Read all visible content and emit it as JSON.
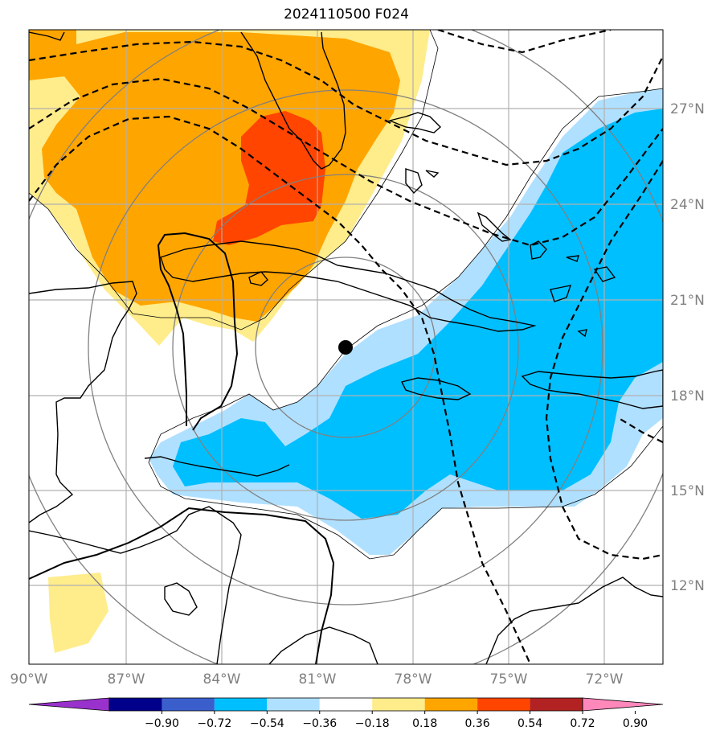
{
  "title": "2024110500 F024",
  "lon_ticks": [
    "90°W",
    "87°W",
    "84°W",
    "81°W",
    "78°W",
    "75°W",
    "72°W"
  ],
  "lat_ticks": [
    "27°N",
    "24°N",
    "21°N",
    "18°N",
    "15°N",
    "12°N"
  ],
  "colorbar": {
    "tick_labels": [
      "−0.90",
      "−0.72",
      "−0.54",
      "−0.36",
      "−0.18",
      "0.18",
      "0.36",
      "0.54",
      "0.72",
      "0.90"
    ],
    "colors": [
      "#9932cc",
      "#00008b",
      "#3a5fcd",
      "#00bfff",
      "#b0e0ff",
      "#ffffff",
      "#ffec8b",
      "#ffa500",
      "#ff4500",
      "#b22222",
      "#ff88bb"
    ]
  },
  "map": {
    "extent": {
      "lon": [
        -90,
        -70
      ],
      "lat": [
        10,
        30
      ]
    },
    "storm_center": {
      "lon": -80.1,
      "lat": 19.5
    },
    "fill_colors": {
      "light_yellow": "#ffec8b",
      "orange": "#ffa500",
      "red_orange": "#ff4500",
      "light_blue": "#b0e0ff",
      "blue": "#00bfff"
    }
  }
}
